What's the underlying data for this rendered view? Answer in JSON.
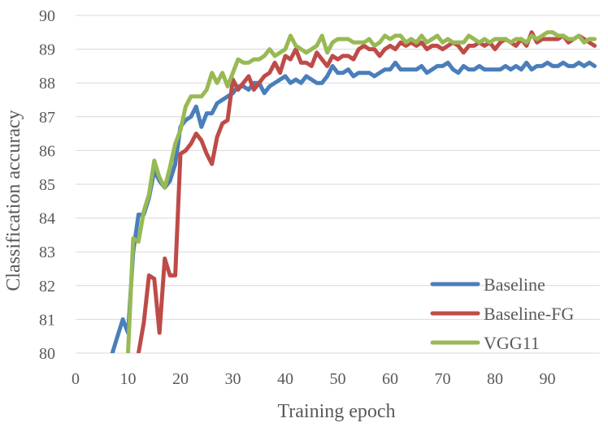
{
  "chart_data": {
    "type": "line",
    "title": "",
    "xlabel": "Training epoch",
    "ylabel": "Classification accuracy",
    "xlim": [
      0,
      100
    ],
    "ylim": [
      80,
      90
    ],
    "xticks": [
      0,
      10,
      20,
      30,
      40,
      50,
      60,
      70,
      80,
      90
    ],
    "yticks": [
      80,
      81,
      82,
      83,
      84,
      85,
      86,
      87,
      88,
      89,
      90
    ],
    "grid": true,
    "legend_position": "bottom-right",
    "series": [
      {
        "name": "Baseline",
        "color": "#4a7ebb",
        "x": [
          7,
          8,
          9,
          10,
          11,
          12,
          13,
          14,
          15,
          16,
          17,
          18,
          19,
          20,
          21,
          22,
          23,
          24,
          25,
          26,
          27,
          28,
          29,
          30,
          31,
          32,
          33,
          34,
          35,
          36,
          37,
          38,
          39,
          40,
          41,
          42,
          43,
          44,
          45,
          46,
          47,
          48,
          49,
          50,
          51,
          52,
          53,
          54,
          55,
          56,
          57,
          58,
          59,
          60,
          61,
          62,
          63,
          64,
          65,
          66,
          67,
          68,
          69,
          70,
          71,
          72,
          73,
          74,
          75,
          76,
          77,
          78,
          79,
          80,
          81,
          82,
          83,
          84,
          85,
          86,
          87,
          88,
          89,
          90,
          91,
          92,
          93,
          94,
          95,
          96,
          97,
          98,
          99
        ],
        "values": [
          80.0,
          80.5,
          81.0,
          80.6,
          83.0,
          84.1,
          84.1,
          84.6,
          85.4,
          85.1,
          84.9,
          85.1,
          85.6,
          86.7,
          86.9,
          87.0,
          87.3,
          86.7,
          87.1,
          87.1,
          87.4,
          87.5,
          87.6,
          87.7,
          87.9,
          87.9,
          87.8,
          88.0,
          88.0,
          87.7,
          87.9,
          88.0,
          88.1,
          88.2,
          88.0,
          88.1,
          88.0,
          88.2,
          88.1,
          88.0,
          88.0,
          88.2,
          88.5,
          88.3,
          88.3,
          88.4,
          88.2,
          88.3,
          88.3,
          88.3,
          88.2,
          88.3,
          88.4,
          88.4,
          88.6,
          88.4,
          88.4,
          88.4,
          88.4,
          88.5,
          88.3,
          88.4,
          88.5,
          88.5,
          88.6,
          88.4,
          88.3,
          88.5,
          88.4,
          88.4,
          88.5,
          88.4,
          88.4,
          88.4,
          88.4,
          88.5,
          88.4,
          88.5,
          88.4,
          88.6,
          88.4,
          88.5,
          88.5,
          88.6,
          88.5,
          88.5,
          88.6,
          88.5,
          88.5,
          88.6,
          88.5,
          88.6,
          88.5
        ]
      },
      {
        "name": "Baseline-FG",
        "color": "#be4b48",
        "x": [
          12,
          13,
          14,
          15,
          16,
          17,
          18,
          19,
          20,
          21,
          22,
          23,
          24,
          25,
          26,
          27,
          28,
          29,
          30,
          31,
          32,
          33,
          34,
          35,
          36,
          37,
          38,
          39,
          40,
          41,
          42,
          43,
          44,
          45,
          46,
          47,
          48,
          49,
          50,
          51,
          52,
          53,
          54,
          55,
          56,
          57,
          58,
          59,
          60,
          61,
          62,
          63,
          64,
          65,
          66,
          67,
          68,
          69,
          70,
          71,
          72,
          73,
          74,
          75,
          76,
          77,
          78,
          79,
          80,
          81,
          82,
          83,
          84,
          85,
          86,
          87,
          88,
          89,
          90,
          91,
          92,
          93,
          94,
          95,
          96,
          97,
          98,
          99
        ],
        "values": [
          80.0,
          80.9,
          82.3,
          82.2,
          80.6,
          82.8,
          82.3,
          82.3,
          85.9,
          86.0,
          86.2,
          86.5,
          86.3,
          85.9,
          85.6,
          86.4,
          86.8,
          86.9,
          88.1,
          87.8,
          88.0,
          88.2,
          87.8,
          88.0,
          88.2,
          88.3,
          88.6,
          88.3,
          88.8,
          88.7,
          89.0,
          88.6,
          88.6,
          88.5,
          88.9,
          88.7,
          88.5,
          88.8,
          88.7,
          88.8,
          88.8,
          88.7,
          89.0,
          89.1,
          89.0,
          89.0,
          88.8,
          89.0,
          89.1,
          89.0,
          89.2,
          89.1,
          89.2,
          89.1,
          89.2,
          89.0,
          89.1,
          89.1,
          89.0,
          89.1,
          89.2,
          89.1,
          88.9,
          89.1,
          89.1,
          89.2,
          89.1,
          89.2,
          89.0,
          89.2,
          89.3,
          89.2,
          89.1,
          89.3,
          89.1,
          89.5,
          89.2,
          89.3,
          89.3,
          89.3,
          89.3,
          89.4,
          89.2,
          89.3,
          89.4,
          89.3,
          89.2,
          89.1
        ]
      },
      {
        "name": "VGG11",
        "color": "#98b954",
        "x": [
          10,
          11,
          12,
          13,
          14,
          15,
          16,
          17,
          18,
          19,
          20,
          21,
          22,
          23,
          24,
          25,
          26,
          27,
          28,
          29,
          30,
          31,
          32,
          33,
          34,
          35,
          36,
          37,
          38,
          39,
          40,
          41,
          42,
          43,
          44,
          45,
          46,
          47,
          48,
          49,
          50,
          51,
          52,
          53,
          54,
          55,
          56,
          57,
          58,
          59,
          60,
          61,
          62,
          63,
          64,
          65,
          66,
          67,
          68,
          69,
          70,
          71,
          72,
          73,
          74,
          75,
          76,
          77,
          78,
          79,
          80,
          81,
          82,
          83,
          84,
          85,
          86,
          87,
          88,
          89,
          90,
          91,
          92,
          93,
          94,
          95,
          96,
          97,
          98,
          99
        ],
        "values": [
          80.0,
          83.4,
          83.3,
          84.2,
          84.7,
          85.7,
          85.2,
          84.9,
          85.5,
          86.2,
          86.6,
          87.3,
          87.6,
          87.6,
          87.6,
          87.8,
          88.3,
          88.0,
          88.3,
          87.9,
          88.3,
          88.7,
          88.6,
          88.6,
          88.7,
          88.7,
          88.8,
          89.0,
          88.8,
          88.9,
          89.0,
          89.4,
          89.1,
          89.0,
          88.9,
          89.0,
          89.1,
          89.4,
          88.9,
          89.2,
          89.3,
          89.3,
          89.3,
          89.2,
          89.2,
          89.2,
          89.3,
          89.1,
          89.2,
          89.4,
          89.3,
          89.4,
          89.4,
          89.2,
          89.3,
          89.2,
          89.4,
          89.2,
          89.3,
          89.4,
          89.2,
          89.3,
          89.2,
          89.2,
          89.2,
          89.4,
          89.3,
          89.2,
          89.3,
          89.2,
          89.3,
          89.3,
          89.3,
          89.2,
          89.3,
          89.3,
          89.2,
          89.4,
          89.3,
          89.4,
          89.5,
          89.5,
          89.4,
          89.4,
          89.3,
          89.3,
          89.4,
          89.2,
          89.3,
          89.3
        ]
      }
    ]
  }
}
